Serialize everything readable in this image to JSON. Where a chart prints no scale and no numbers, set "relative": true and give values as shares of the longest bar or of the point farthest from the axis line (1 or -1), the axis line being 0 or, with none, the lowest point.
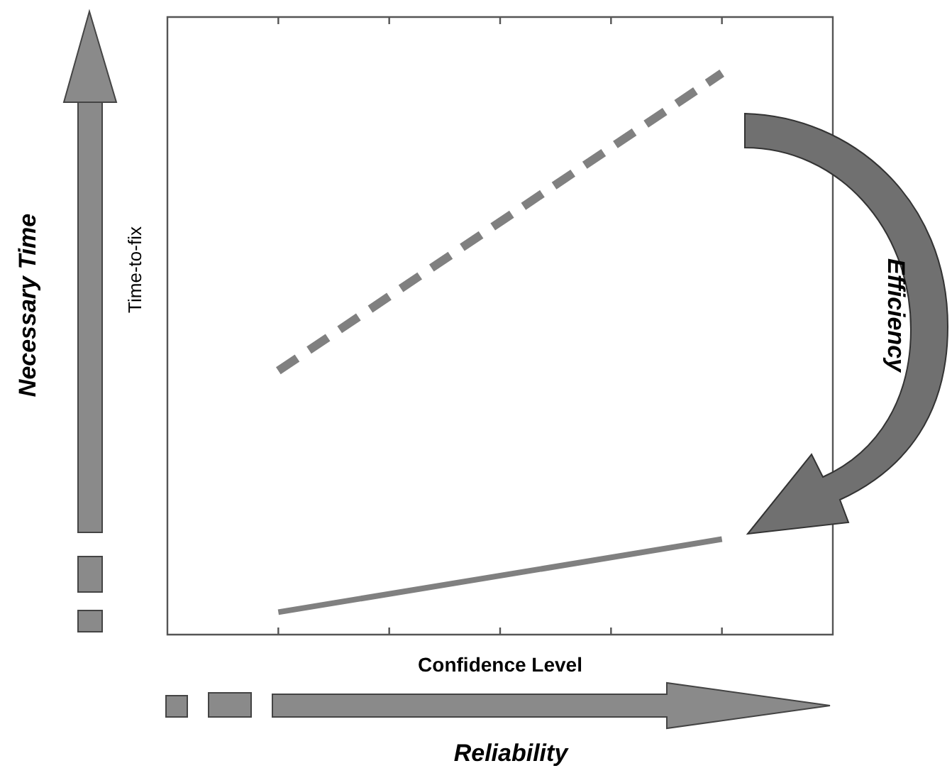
{
  "chart_data": {
    "type": "line",
    "xlabel": "Confidence Level",
    "ylabel": "Time-to-fix",
    "annotations": [
      "Necessary Time",
      "Reliability",
      "Efficiency"
    ],
    "categories": [
      null,
      null,
      null,
      null,
      null,
      null,
      null
    ],
    "relative": true,
    "marker": "none",
    "series": [
      {
        "color": "#808080",
        "line_style": "dashed",
        "values": [
          null,
          0.47,
          null,
          null,
          null,
          1,
          null
        ]
      },
      {
        "color": "#808080",
        "line_style": "solid",
        "values": [
          null,
          0.04,
          null,
          null,
          null,
          0.17,
          null
        ]
      }
    ]
  }
}
